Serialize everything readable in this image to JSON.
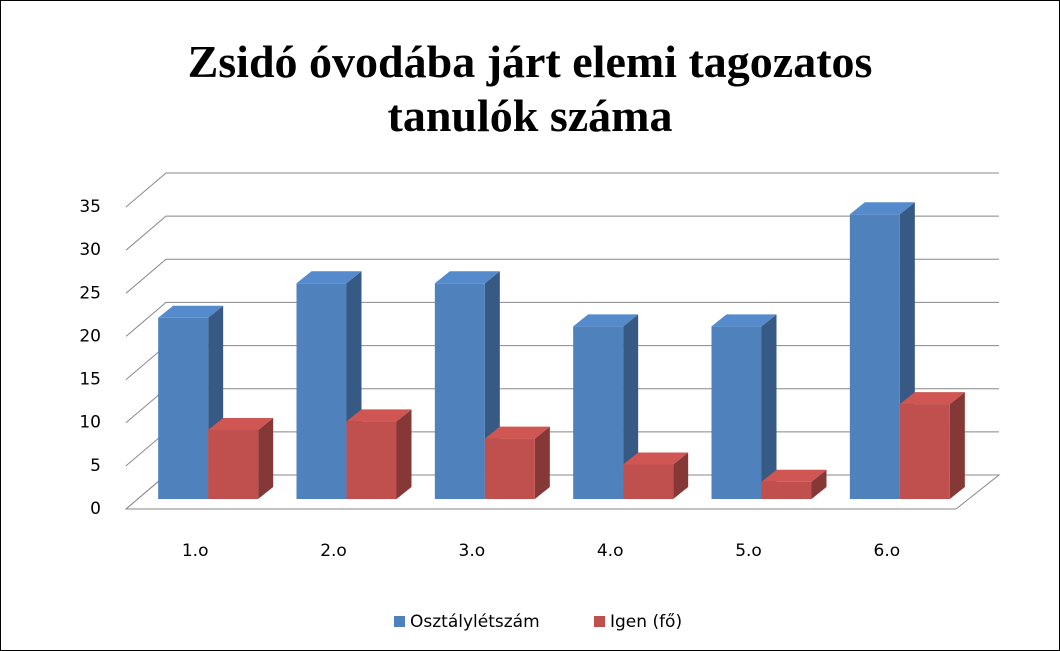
{
  "chart_data": {
    "type": "bar3d",
    "title": "Zsidó óvodába járt elemi tagozatos tanulók száma",
    "categories": [
      "1.o",
      "2.o",
      "3.o",
      "4.o",
      "5.o",
      "6.o"
    ],
    "series": [
      {
        "name": "Osztálylétszám",
        "color": "#4f81bd",
        "values": [
          21,
          25,
          25,
          20,
          20,
          33
        ]
      },
      {
        "name": "Igen (fő)",
        "color": "#c0504d",
        "values": [
          8,
          9,
          7,
          4,
          2,
          11
        ]
      }
    ],
    "ylim": [
      0,
      35
    ],
    "yticks": [
      0,
      5,
      10,
      15,
      20,
      25,
      30,
      35
    ],
    "grid": true,
    "legend": "bottom"
  }
}
